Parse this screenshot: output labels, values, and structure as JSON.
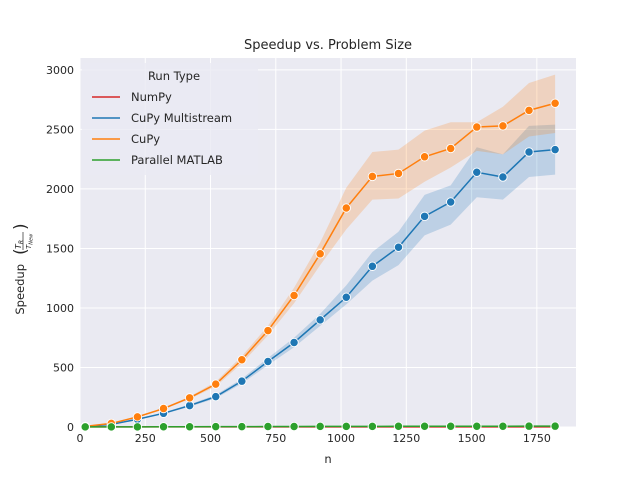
{
  "chart_data": {
    "type": "line",
    "title": "Speedup vs. Problem Size",
    "xlabel": "n",
    "ylabel_prefix": "Speedup",
    "ylabel_fraction_num": "T",
    "ylabel_fraction_num_sub": "R",
    "ylabel_fraction_den": "T",
    "ylabel_fraction_den_sub": "New",
    "xlim": [
      0,
      1900
    ],
    "ylim": [
      0,
      3100
    ],
    "xticks": [
      0,
      250,
      500,
      750,
      1000,
      1250,
      1500,
      1750
    ],
    "yticks": [
      0,
      500,
      1000,
      1500,
      2000,
      2500,
      3000
    ],
    "grid": true,
    "legend_title": "Run Type",
    "legend_position": "top-left",
    "x": [
      20,
      120,
      220,
      320,
      420,
      520,
      620,
      720,
      820,
      920,
      1020,
      1120,
      1220,
      1320,
      1420,
      1520,
      1620,
      1720,
      1820
    ],
    "series": [
      {
        "name": "NumPy",
        "color": "#d62728",
        "values": [
          1,
          1,
          1,
          1,
          1,
          1,
          1,
          1,
          1,
          1,
          1,
          1,
          1,
          1,
          1,
          1,
          1,
          1,
          1
        ]
      },
      {
        "name": "CuPy Multistream",
        "color": "#1f77b4",
        "values": [
          5,
          22,
          65,
          115,
          180,
          255,
          385,
          550,
          710,
          900,
          1090,
          1350,
          1510,
          1770,
          1890,
          2140,
          2100,
          2310,
          2330
        ],
        "lower": [
          5,
          20,
          60,
          108,
          170,
          240,
          365,
          520,
          670,
          850,
          1030,
          1230,
          1360,
          1610,
          1700,
          1930,
          1910,
          2100,
          2120
        ],
        "upper": [
          5,
          24,
          70,
          122,
          190,
          270,
          405,
          580,
          750,
          950,
          1190,
          1470,
          1640,
          1950,
          2030,
          2350,
          2290,
          2530,
          2540
        ]
      },
      {
        "name": "CuPy",
        "color": "#ff7f0e",
        "values": [
          5,
          30,
          85,
          155,
          245,
          360,
          565,
          810,
          1105,
          1455,
          1840,
          2105,
          2130,
          2270,
          2340,
          2520,
          2530,
          2660,
          2720
        ],
        "lower": [
          5,
          28,
          80,
          147,
          235,
          340,
          535,
          770,
          1040,
          1360,
          1660,
          1910,
          1920,
          2060,
          2180,
          2320,
          2290,
          2440,
          2470
        ],
        "upper": [
          5,
          32,
          90,
          163,
          255,
          380,
          595,
          850,
          1170,
          1550,
          2010,
          2310,
          2330,
          2490,
          2560,
          2560,
          2690,
          2890,
          2960
        ]
      },
      {
        "name": "Parallel MATLAB",
        "color": "#2ca02c",
        "values": [
          1,
          1,
          1,
          2,
          2,
          3,
          3,
          4,
          4,
          5,
          5,
          5,
          6,
          6,
          6,
          6,
          6,
          7,
          7
        ]
      }
    ]
  }
}
